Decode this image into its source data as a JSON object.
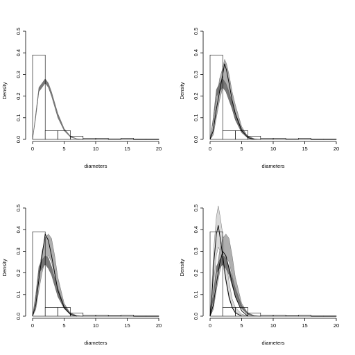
{
  "chart_data": [
    {
      "type": "area",
      "panel": "top-left",
      "xlabel": "diameters",
      "ylabel": "Density",
      "xlim": [
        0,
        20
      ],
      "ylim": [
        0,
        0.5
      ],
      "xticks": [
        0,
        5,
        10,
        15,
        20
      ],
      "yticks": [
        0.0,
        0.1,
        0.2,
        0.3,
        0.4,
        0.5
      ],
      "grid": false,
      "histogram": {
        "bins": [
          [
            0,
            2
          ],
          [
            2,
            4
          ],
          [
            4,
            6
          ],
          [
            6,
            8
          ],
          [
            8,
            10
          ],
          [
            10,
            12
          ],
          [
            12,
            14
          ],
          [
            14,
            16
          ],
          [
            16,
            18
          ],
          [
            18,
            20
          ]
        ],
        "values": [
          0.39,
          0.04,
          0.04,
          0.015,
          0.004,
          0.005,
          0.002,
          0.005,
          0.001,
          0.001
        ]
      },
      "bands": [
        {
          "color": "#6e6e6e",
          "x": [
            0,
            0.5,
            1.0,
            1.5,
            2.0,
            2.5,
            3.0,
            3.5,
            4.0,
            5.0,
            6.0,
            7.0,
            8.0
          ],
          "upper": [
            0.0,
            0.12,
            0.24,
            0.26,
            0.28,
            0.26,
            0.22,
            0.17,
            0.12,
            0.05,
            0.015,
            0.003,
            0.0
          ],
          "lower": [
            0.0,
            0.1,
            0.22,
            0.24,
            0.26,
            0.24,
            0.2,
            0.15,
            0.1,
            0.04,
            0.01,
            0.002,
            0.0
          ]
        }
      ],
      "lines": []
    },
    {
      "type": "area",
      "panel": "top-right",
      "xlabel": "diameters",
      "ylabel": "Density",
      "xlim": [
        0,
        20
      ],
      "ylim": [
        0,
        0.5
      ],
      "xticks": [
        0,
        5,
        10,
        15,
        20
      ],
      "yticks": [
        0.0,
        0.1,
        0.2,
        0.3,
        0.4,
        0.5
      ],
      "grid": false,
      "histogram": {
        "bins": [
          [
            0,
            2
          ],
          [
            2,
            4
          ],
          [
            4,
            6
          ],
          [
            6,
            8
          ],
          [
            8,
            10
          ],
          [
            10,
            12
          ],
          [
            12,
            14
          ],
          [
            14,
            16
          ],
          [
            16,
            18
          ],
          [
            18,
            20
          ]
        ],
        "values": [
          0.39,
          0.04,
          0.04,
          0.015,
          0.004,
          0.005,
          0.002,
          0.005,
          0.001,
          0.001
        ]
      },
      "bands": [
        {
          "color": "#a8a8a8",
          "x": [
            0,
            0.5,
            1.0,
            1.5,
            2.0,
            2.3,
            2.6,
            3.0,
            3.5,
            4.0,
            5.0,
            6.0,
            7.0
          ],
          "upper": [
            0.0,
            0.06,
            0.18,
            0.28,
            0.33,
            0.37,
            0.35,
            0.3,
            0.22,
            0.16,
            0.06,
            0.01,
            0.0
          ],
          "lower": [
            0.0,
            0.02,
            0.1,
            0.18,
            0.24,
            0.26,
            0.25,
            0.2,
            0.14,
            0.09,
            0.03,
            0.005,
            0.0
          ]
        },
        {
          "color": "#6e6e6e",
          "x": [
            0,
            0.5,
            1.0,
            1.5,
            2.0,
            2.5,
            3.0,
            3.5,
            4.0,
            5.0,
            6.0,
            7.0,
            8.0
          ],
          "upper": [
            0.0,
            0.1,
            0.23,
            0.26,
            0.28,
            0.26,
            0.22,
            0.17,
            0.12,
            0.05,
            0.015,
            0.003,
            0.0
          ],
          "lower": [
            0.0,
            0.08,
            0.2,
            0.22,
            0.24,
            0.22,
            0.18,
            0.14,
            0.09,
            0.035,
            0.008,
            0.001,
            0.0
          ]
        }
      ],
      "lines": [
        {
          "color": "#000000",
          "x": [
            0,
            0.5,
            1.0,
            1.5,
            2.0,
            2.3,
            2.6,
            3.0,
            3.5,
            4.0,
            5.0,
            6.0,
            7.0
          ],
          "y": [
            0.0,
            0.04,
            0.14,
            0.22,
            0.3,
            0.35,
            0.32,
            0.26,
            0.18,
            0.12,
            0.04,
            0.008,
            0.0
          ]
        }
      ]
    },
    {
      "type": "area",
      "panel": "bottom-left",
      "xlabel": "diameters",
      "ylabel": "Density",
      "xlim": [
        0,
        20
      ],
      "ylim": [
        0,
        0.5
      ],
      "xticks": [
        0,
        5,
        10,
        15,
        20
      ],
      "yticks": [
        0.0,
        0.1,
        0.2,
        0.3,
        0.4,
        0.5
      ],
      "grid": false,
      "histogram": {
        "bins": [
          [
            0,
            2
          ],
          [
            2,
            4
          ],
          [
            4,
            6
          ],
          [
            6,
            8
          ],
          [
            8,
            10
          ],
          [
            10,
            12
          ],
          [
            12,
            14
          ],
          [
            14,
            16
          ],
          [
            16,
            18
          ],
          [
            18,
            20
          ]
        ],
        "values": [
          0.39,
          0.04,
          0.04,
          0.015,
          0.004,
          0.005,
          0.002,
          0.005,
          0.001,
          0.001
        ]
      },
      "bands": [
        {
          "color": "#a8a8a8",
          "x": [
            0,
            0.5,
            1.0,
            1.5,
            2.0,
            2.5,
            3.0,
            3.5,
            4.0,
            5.0,
            6.0,
            7.0
          ],
          "upper": [
            0.0,
            0.08,
            0.2,
            0.3,
            0.36,
            0.38,
            0.36,
            0.28,
            0.18,
            0.06,
            0.012,
            0.0
          ],
          "lower": [
            0.0,
            0.03,
            0.12,
            0.2,
            0.26,
            0.28,
            0.25,
            0.19,
            0.12,
            0.035,
            0.006,
            0.0
          ]
        },
        {
          "color": "#6e6e6e",
          "x": [
            0,
            0.5,
            1.0,
            1.5,
            2.0,
            2.5,
            3.0,
            3.5,
            4.0,
            5.0,
            6.0,
            7.0,
            8.0
          ],
          "upper": [
            0.0,
            0.1,
            0.23,
            0.26,
            0.28,
            0.27,
            0.23,
            0.18,
            0.13,
            0.05,
            0.015,
            0.003,
            0.0
          ],
          "lower": [
            0.0,
            0.08,
            0.2,
            0.22,
            0.24,
            0.22,
            0.19,
            0.14,
            0.09,
            0.035,
            0.008,
            0.001,
            0.0
          ]
        }
      ],
      "lines": [
        {
          "color": "#000000",
          "x": [
            0,
            0.5,
            1.0,
            1.5,
            2.0,
            2.5,
            3.0,
            3.5,
            4.0,
            5.0,
            6.0,
            7.0
          ],
          "y": [
            0.0,
            0.05,
            0.17,
            0.28,
            0.38,
            0.35,
            0.28,
            0.2,
            0.12,
            0.04,
            0.008,
            0.0
          ]
        }
      ]
    },
    {
      "type": "area",
      "panel": "bottom-right",
      "xlabel": "diameters",
      "ylabel": "Density",
      "xlim": [
        0,
        20
      ],
      "ylim": [
        0,
        0.5
      ],
      "xticks": [
        0,
        5,
        10,
        15,
        20
      ],
      "yticks": [
        0.0,
        0.1,
        0.2,
        0.3,
        0.4,
        0.5
      ],
      "grid": false,
      "histogram": {
        "bins": [
          [
            0,
            2
          ],
          [
            2,
            4
          ],
          [
            4,
            6
          ],
          [
            6,
            8
          ],
          [
            8,
            10
          ],
          [
            10,
            12
          ],
          [
            12,
            14
          ],
          [
            14,
            16
          ],
          [
            16,
            18
          ],
          [
            18,
            20
          ]
        ],
        "values": [
          0.39,
          0.04,
          0.04,
          0.015,
          0.004,
          0.005,
          0.002,
          0.005,
          0.001,
          0.001
        ]
      },
      "bands": [
        {
          "color": "#d6d6d6",
          "x": [
            0,
            0.3,
            0.6,
            1.0,
            1.3,
            1.6,
            2.0,
            2.5,
            3.0,
            3.5,
            4.0,
            5.0,
            6.0
          ],
          "upper": [
            0.0,
            0.15,
            0.32,
            0.46,
            0.51,
            0.46,
            0.38,
            0.26,
            0.16,
            0.08,
            0.04,
            0.01,
            0.0
          ],
          "lower": [
            0.0,
            0.06,
            0.16,
            0.28,
            0.32,
            0.3,
            0.25,
            0.16,
            0.08,
            0.04,
            0.02,
            0.004,
            0.0
          ]
        },
        {
          "color": "#a8a8a8",
          "x": [
            0,
            0.5,
            1.0,
            1.5,
            2.0,
            2.5,
            3.0,
            3.5,
            4.0,
            5.0,
            6.0,
            7.0
          ],
          "upper": [
            0.0,
            0.08,
            0.2,
            0.3,
            0.36,
            0.38,
            0.36,
            0.28,
            0.18,
            0.06,
            0.012,
            0.0
          ],
          "lower": [
            0.0,
            0.03,
            0.12,
            0.2,
            0.26,
            0.28,
            0.25,
            0.19,
            0.12,
            0.035,
            0.006,
            0.0
          ]
        },
        {
          "color": "#6e6e6e",
          "x": [
            0,
            0.5,
            1.0,
            1.5,
            2.0,
            2.5,
            3.0,
            3.5,
            4.0,
            5.0,
            6.0,
            7.0,
            8.0
          ],
          "upper": [
            0.0,
            0.1,
            0.23,
            0.26,
            0.28,
            0.27,
            0.23,
            0.18,
            0.13,
            0.05,
            0.015,
            0.003,
            0.0
          ],
          "lower": [
            0.0,
            0.08,
            0.2,
            0.22,
            0.24,
            0.22,
            0.19,
            0.14,
            0.09,
            0.035,
            0.008,
            0.001,
            0.0
          ]
        }
      ],
      "lines": [
        {
          "color": "#000000",
          "x": [
            0,
            0.3,
            0.6,
            1.0,
            1.3,
            1.6,
            2.0,
            2.5,
            3.0,
            3.5,
            4.0,
            5.0
          ],
          "y": [
            0.0,
            0.1,
            0.25,
            0.38,
            0.42,
            0.36,
            0.28,
            0.17,
            0.09,
            0.04,
            0.015,
            0.0
          ]
        },
        {
          "color": "#000000",
          "x": [
            0,
            0.5,
            1.0,
            1.5,
            2.0,
            2.5,
            3.0,
            3.5,
            4.0,
            5.0,
            6.0
          ],
          "y": [
            0.0,
            0.05,
            0.15,
            0.24,
            0.3,
            0.28,
            0.22,
            0.15,
            0.09,
            0.025,
            0.0
          ]
        }
      ]
    }
  ]
}
